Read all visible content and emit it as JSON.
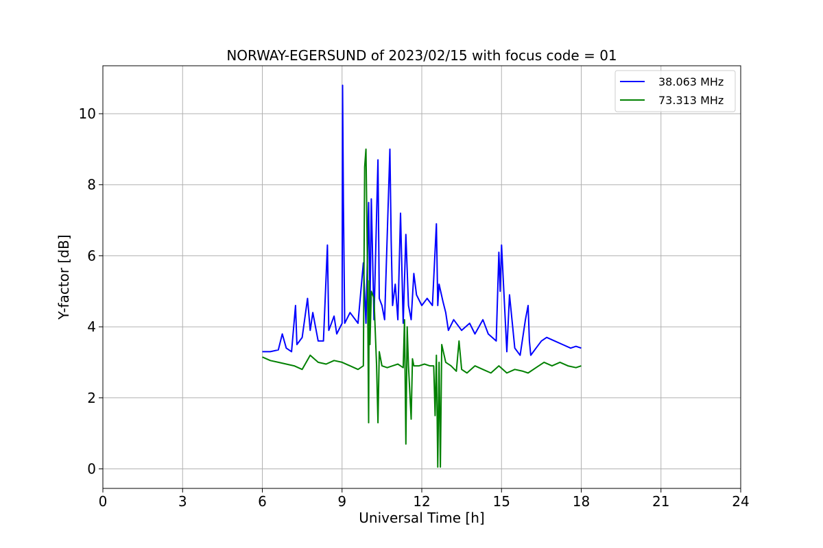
{
  "chart_data": {
    "type": "line",
    "title": "NORWAY-EGERSUND of 2023/02/15 with focus code = 01",
    "xlabel": "Universal Time [h]",
    "ylabel": "Y-factor [dB]",
    "xlim": [
      0,
      24
    ],
    "ylim": [
      -0.55,
      11.35
    ],
    "xticks": [
      0,
      3,
      6,
      9,
      12,
      15,
      18,
      21,
      24
    ],
    "xtick_labels": [
      "0",
      "3",
      "6",
      "9",
      "12",
      "15",
      "18",
      "21",
      "24"
    ],
    "yticks": [
      0,
      2,
      4,
      6,
      8,
      10
    ],
    "ytick_labels": [
      "0",
      "2",
      "4",
      "6",
      "8",
      "10"
    ],
    "grid": true,
    "legend_position": "top-right",
    "series": [
      {
        "name": "38.063 MHz",
        "color": "#0000ff",
        "x": [
          6.0,
          6.3,
          6.6,
          6.75,
          6.9,
          7.1,
          7.25,
          7.3,
          7.5,
          7.7,
          7.8,
          7.9,
          8.1,
          8.3,
          8.45,
          8.5,
          8.7,
          8.8,
          9.0,
          9.02,
          9.05,
          9.1,
          9.3,
          9.6,
          9.8,
          9.9,
          10.0,
          10.05,
          10.1,
          10.2,
          10.35,
          10.4,
          10.5,
          10.6,
          10.8,
          10.85,
          10.9,
          11.0,
          11.1,
          11.2,
          11.3,
          11.4,
          11.5,
          11.6,
          11.7,
          11.8,
          12.0,
          12.2,
          12.4,
          12.55,
          12.6,
          12.65,
          12.8,
          12.9,
          13.0,
          13.2,
          13.5,
          13.8,
          14.0,
          14.3,
          14.5,
          14.8,
          14.9,
          14.95,
          15.0,
          15.2,
          15.3,
          15.5,
          15.7,
          15.9,
          16.0,
          16.05,
          16.1,
          16.3,
          16.5,
          16.7,
          17.0,
          17.3,
          17.6,
          17.8,
          18.0
        ],
        "y": [
          3.3,
          3.3,
          3.35,
          3.8,
          3.4,
          3.3,
          4.6,
          3.5,
          3.7,
          4.8,
          3.9,
          4.4,
          3.6,
          3.6,
          6.3,
          3.9,
          4.3,
          3.8,
          4.1,
          10.8,
          7.5,
          4.1,
          4.4,
          4.1,
          5.8,
          4.1,
          7.5,
          4.4,
          7.6,
          4.2,
          8.7,
          4.8,
          4.6,
          4.2,
          9.0,
          6.4,
          4.6,
          5.2,
          4.2,
          7.2,
          4.1,
          6.6,
          4.6,
          4.2,
          5.5,
          4.9,
          4.6,
          4.8,
          4.6,
          6.9,
          4.6,
          5.2,
          4.7,
          4.4,
          3.9,
          4.2,
          3.9,
          4.1,
          3.8,
          4.2,
          3.8,
          3.6,
          6.1,
          5.0,
          6.3,
          3.3,
          4.9,
          3.4,
          3.2,
          4.2,
          4.6,
          3.6,
          3.2,
          3.4,
          3.6,
          3.7,
          3.6,
          3.5,
          3.4,
          3.45,
          3.4
        ]
      },
      {
        "name": "73.313 MHz",
        "color": "#008000",
        "x": [
          6.0,
          6.3,
          6.6,
          6.9,
          7.2,
          7.5,
          7.8,
          8.1,
          8.4,
          8.7,
          9.0,
          9.3,
          9.6,
          9.8,
          9.85,
          9.9,
          9.95,
          10.0,
          10.02,
          10.05,
          10.1,
          10.2,
          10.3,
          10.35,
          10.4,
          10.5,
          10.7,
          10.9,
          11.1,
          11.3,
          11.35,
          11.4,
          11.45,
          11.5,
          11.6,
          11.65,
          11.7,
          11.9,
          12.1,
          12.3,
          12.45,
          12.5,
          12.55,
          12.6,
          12.65,
          12.7,
          12.75,
          12.9,
          13.1,
          13.3,
          13.4,
          13.5,
          13.7,
          14.0,
          14.3,
          14.6,
          14.9,
          15.2,
          15.5,
          15.8,
          16.0,
          16.3,
          16.6,
          16.9,
          17.2,
          17.5,
          17.8,
          18.0
        ],
        "y": [
          3.15,
          3.05,
          3.0,
          2.95,
          2.9,
          2.8,
          3.2,
          3.0,
          2.95,
          3.05,
          3.0,
          2.9,
          2.8,
          2.9,
          8.5,
          9.0,
          6.0,
          1.3,
          5.3,
          3.5,
          5.0,
          4.8,
          2.9,
          1.3,
          3.3,
          2.9,
          2.85,
          2.9,
          2.95,
          2.85,
          4.2,
          0.7,
          4.0,
          2.9,
          1.4,
          3.1,
          2.9,
          2.9,
          2.95,
          2.9,
          2.9,
          1.5,
          3.2,
          0.05,
          3.0,
          0.05,
          3.5,
          3.0,
          2.9,
          2.75,
          3.6,
          2.8,
          2.7,
          2.9,
          2.8,
          2.7,
          2.9,
          2.7,
          2.8,
          2.75,
          2.7,
          2.85,
          3.0,
          2.9,
          3.0,
          2.9,
          2.85,
          2.9
        ]
      }
    ]
  }
}
